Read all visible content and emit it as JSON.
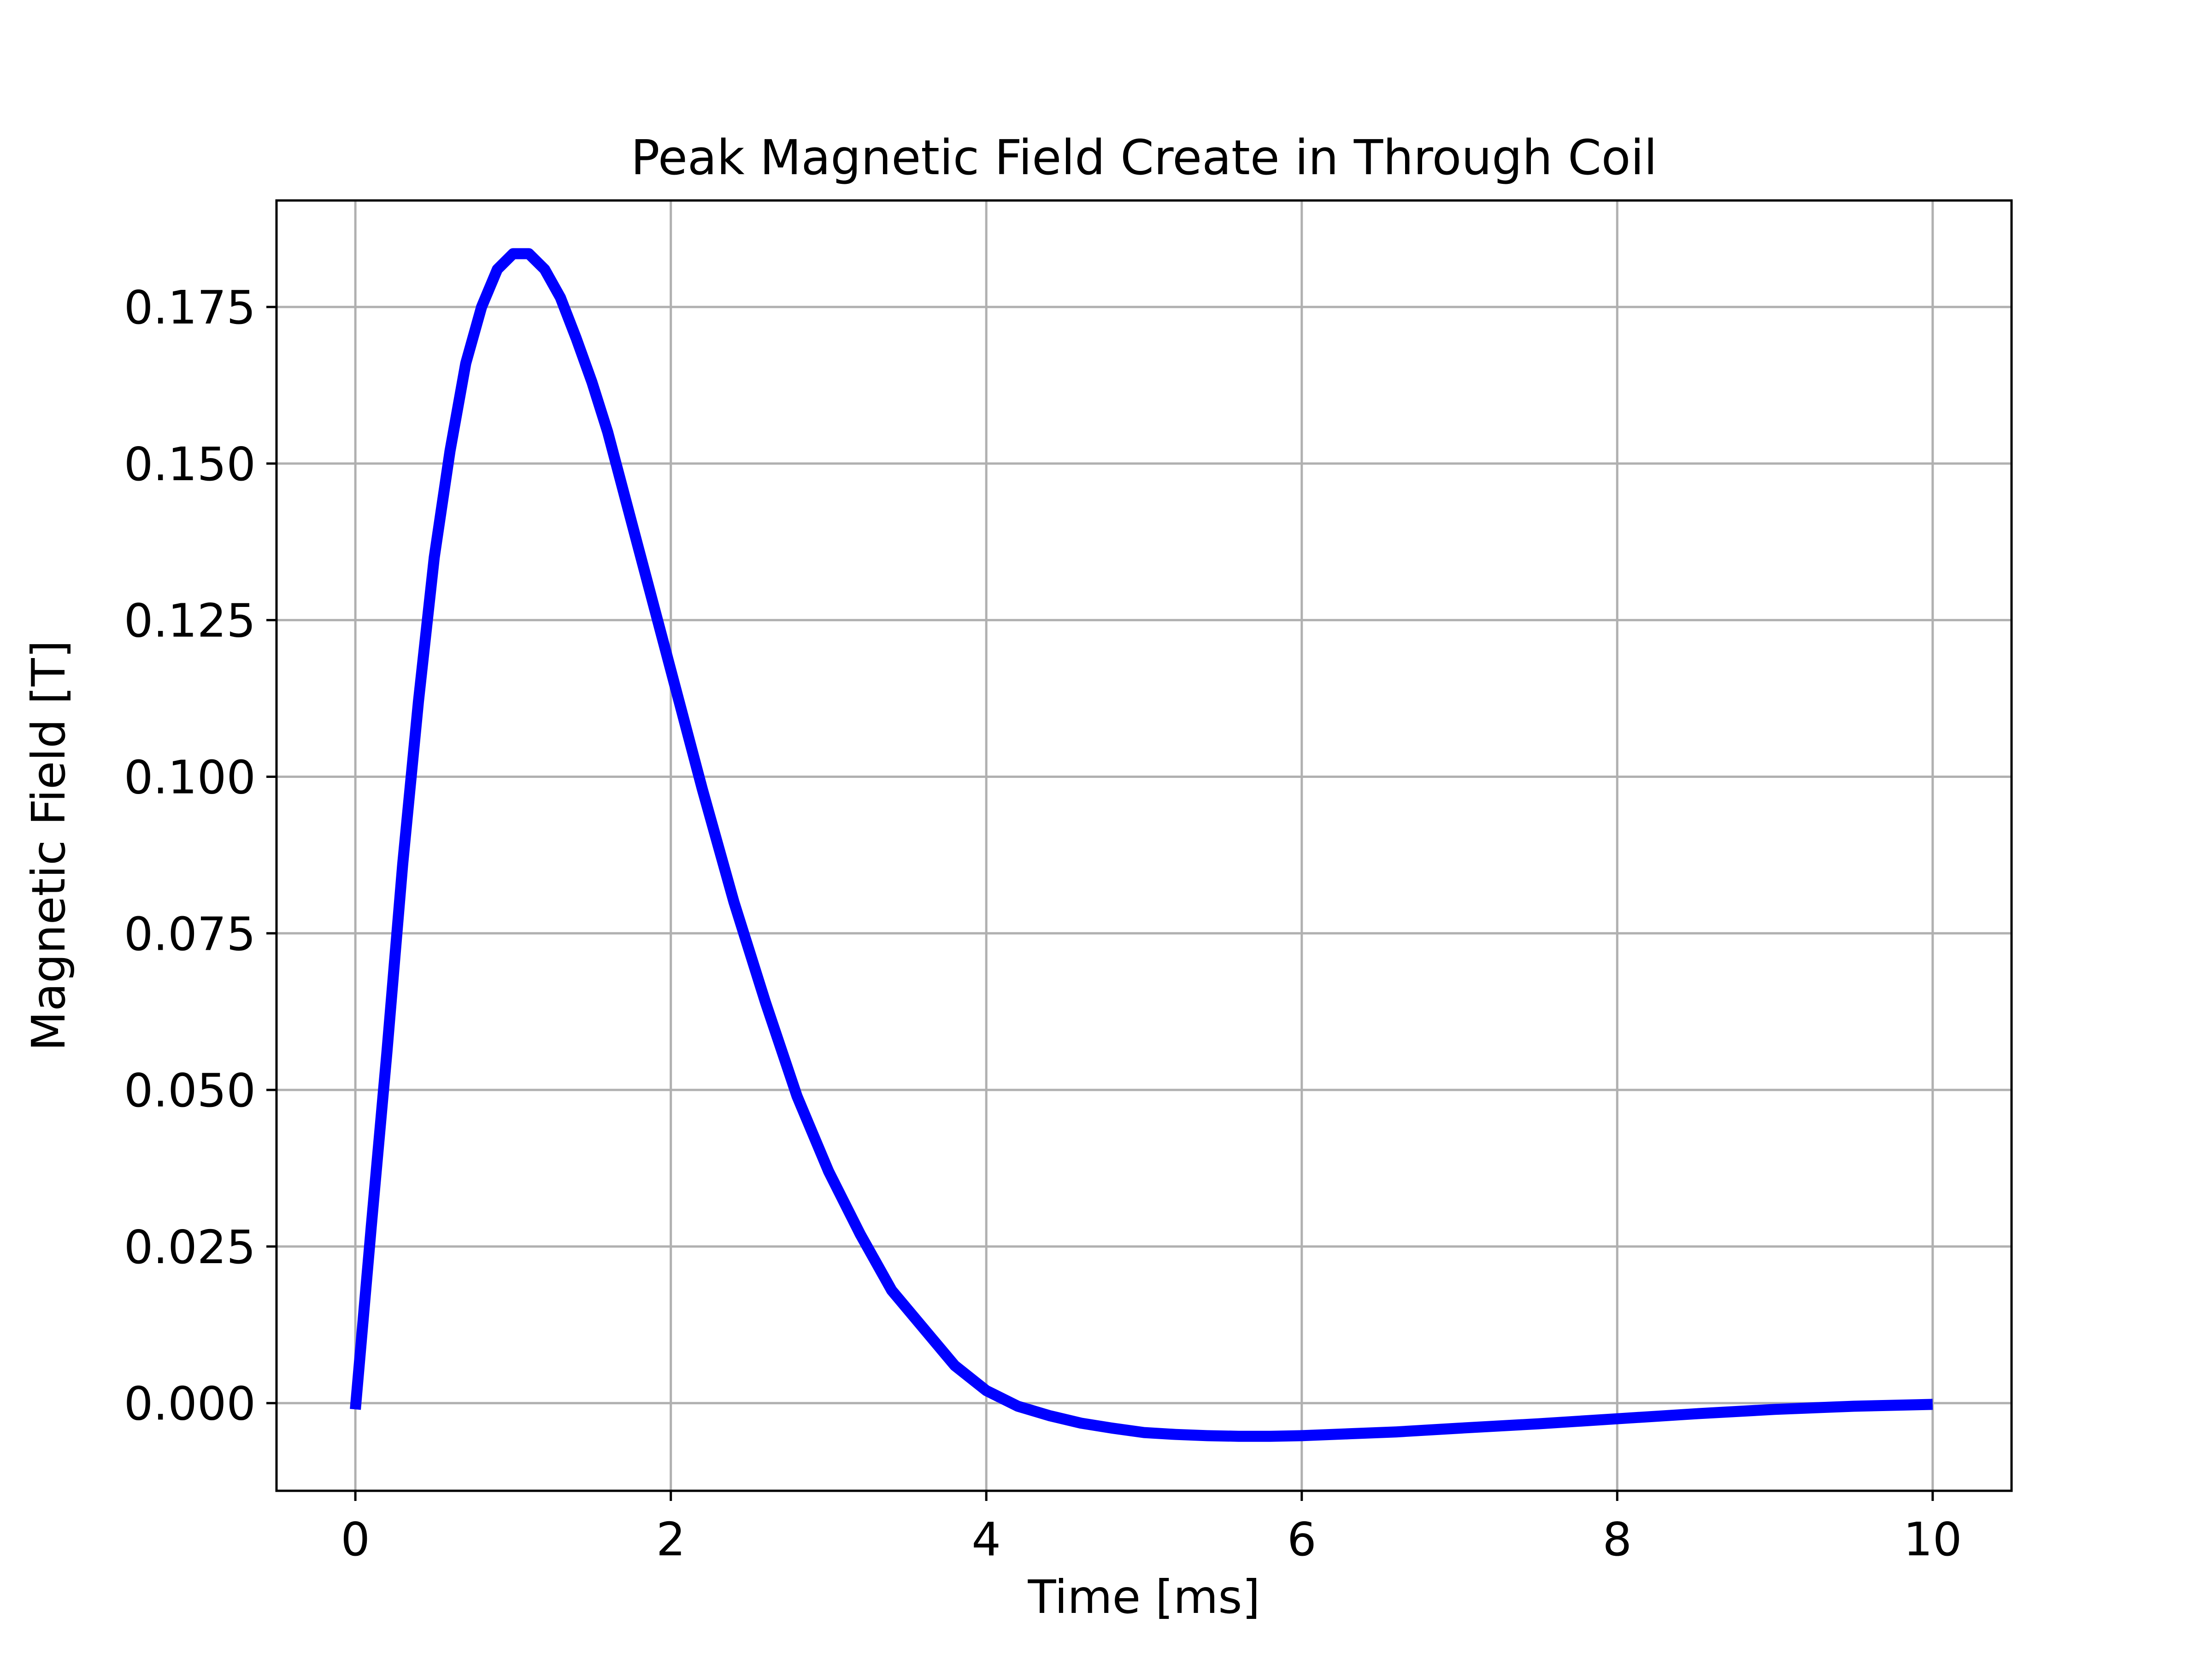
{
  "chart_data": {
    "type": "line",
    "title": "Peak Magnetic Field Create in Through Coil",
    "xlabel": "Time [ms]",
    "ylabel": "Magnetic Field [T]",
    "xlim": [
      -0.5,
      10.5
    ],
    "ylim": [
      -0.014,
      0.192
    ],
    "xticks": [
      0,
      2,
      4,
      6,
      8,
      10
    ],
    "xtick_labels": [
      "0",
      "2",
      "4",
      "6",
      "8",
      "10"
    ],
    "yticks": [
      0.0,
      0.025,
      0.05,
      0.075,
      0.1,
      0.125,
      0.15,
      0.175
    ],
    "ytick_labels": [
      "0.000",
      "0.025",
      "0.050",
      "0.075",
      "0.100",
      "0.125",
      "0.150",
      "0.175"
    ],
    "grid": true,
    "series": [
      {
        "color": "#0000ff",
        "x": [
          0.0,
          0.1,
          0.2,
          0.3,
          0.4,
          0.5,
          0.6,
          0.7,
          0.8,
          0.9,
          1.0,
          1.1,
          1.2,
          1.3,
          1.4,
          1.5,
          1.6,
          1.8,
          2.0,
          2.2,
          2.4,
          2.6,
          2.8,
          3.0,
          3.2,
          3.4,
          3.6,
          3.8,
          4.0,
          4.2,
          4.4,
          4.6,
          4.8,
          5.0,
          5.2,
          5.4,
          5.6,
          5.8,
          6.0,
          6.3,
          6.6,
          7.0,
          7.5,
          8.0,
          8.5,
          9.0,
          9.5,
          10.0
        ],
        "y": [
          -0.001,
          0.028,
          0.056,
          0.086,
          0.112,
          0.135,
          0.152,
          0.166,
          0.175,
          0.181,
          0.1835,
          0.1835,
          0.181,
          0.1765,
          0.17,
          0.163,
          0.155,
          0.136,
          0.117,
          0.098,
          0.08,
          0.064,
          0.049,
          0.037,
          0.027,
          0.018,
          0.012,
          0.006,
          0.002,
          -0.0005,
          -0.002,
          -0.0032,
          -0.004,
          -0.0047,
          -0.005,
          -0.0052,
          -0.0053,
          -0.0053,
          -0.0052,
          -0.0049,
          -0.0046,
          -0.004,
          -0.0033,
          -0.0025,
          -0.0017,
          -0.001,
          -0.0005,
          -0.0002
        ]
      }
    ]
  }
}
